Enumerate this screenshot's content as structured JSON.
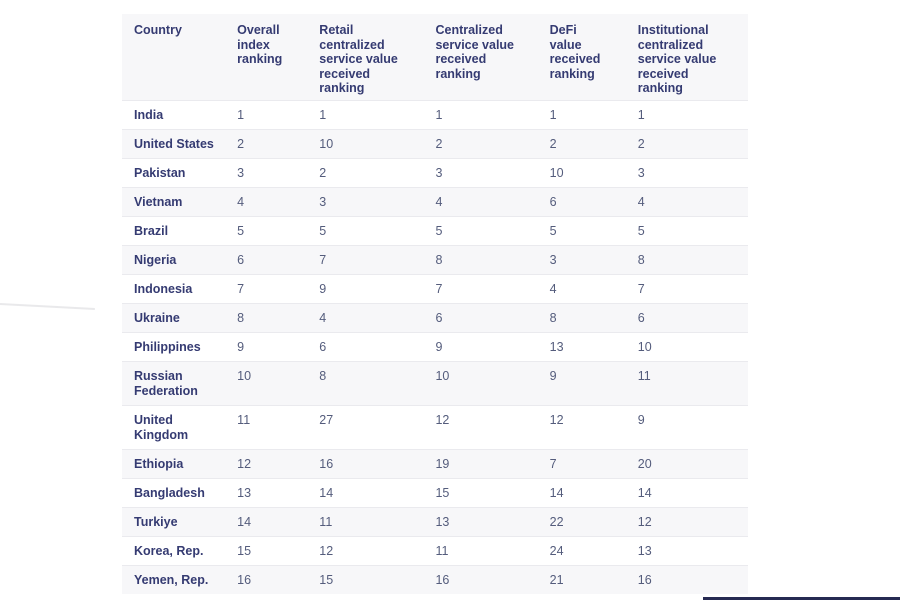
{
  "colors": {
    "page_bg": "#ffffff",
    "heading_text": "#353b72",
    "value_text": "#545c7c",
    "stripe_bg": "#f7f7f9",
    "row_border": "#eaeaee",
    "bottom_bar": "#262a52"
  },
  "chart_data": {
    "type": "table",
    "columns": [
      "Country",
      "Overall index ranking",
      "Retail centralized service value received ranking",
      "Centralized service value received ranking",
      "DeFi value received ranking",
      "Institutional centralized service value received ranking"
    ],
    "rows": [
      [
        "India",
        1,
        1,
        1,
        1,
        1
      ],
      [
        "United States",
        2,
        10,
        2,
        2,
        2
      ],
      [
        "Pakistan",
        3,
        2,
        3,
        10,
        3
      ],
      [
        "Vietnam",
        4,
        3,
        4,
        6,
        4
      ],
      [
        "Brazil",
        5,
        5,
        5,
        5,
        5
      ],
      [
        "Nigeria",
        6,
        7,
        8,
        3,
        8
      ],
      [
        "Indonesia",
        7,
        9,
        7,
        4,
        7
      ],
      [
        "Ukraine",
        8,
        4,
        6,
        8,
        6
      ],
      [
        "Philippines",
        9,
        6,
        9,
        13,
        10
      ],
      [
        "Russian Federation",
        10,
        8,
        10,
        9,
        11
      ],
      [
        "United Kingdom",
        11,
        27,
        12,
        12,
        9
      ],
      [
        "Ethiopia",
        12,
        16,
        19,
        7,
        20
      ],
      [
        "Bangladesh",
        13,
        14,
        15,
        14,
        14
      ],
      [
        "Turkiye",
        14,
        11,
        13,
        22,
        12
      ],
      [
        "Korea, Rep.",
        15,
        12,
        11,
        24,
        13
      ],
      [
        "Yemen, Rep.",
        16,
        15,
        16,
        21,
        16
      ]
    ]
  }
}
